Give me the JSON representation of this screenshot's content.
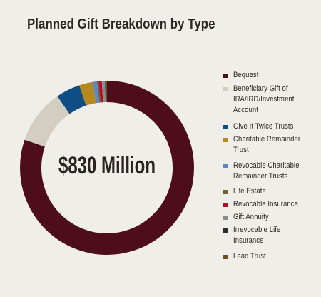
{
  "chart_data": {
    "type": "pie",
    "title": "Planned Gift Breakdown by Type",
    "center_label": "$830 Million",
    "legend_position": "right",
    "categories": [
      "Bequest",
      "Beneficiary Gift of IRA/IRD/Investment Account",
      "Give It Twice Trusts",
      "Charitable Remainder Trust",
      "Revocable Charitable Remainder Trusts",
      "Life Estate",
      "Revocable Insurance",
      "Gift Annuity",
      "Irrevocable Life Insurance",
      "Lead Trust"
    ],
    "values": [
      80.2,
      10.1,
      4.5,
      2.5,
      0.8,
      0.3,
      0.6,
      0.6,
      0.2,
      0.2
    ],
    "colors": [
      "#4d0d1d",
      "#d3cec0",
      "#0f4d85",
      "#b5891c",
      "#5a89c8",
      "#6f6336",
      "#b0102a",
      "#8b8b8b",
      "#2a2a33",
      "#6d4f20"
    ]
  }
}
